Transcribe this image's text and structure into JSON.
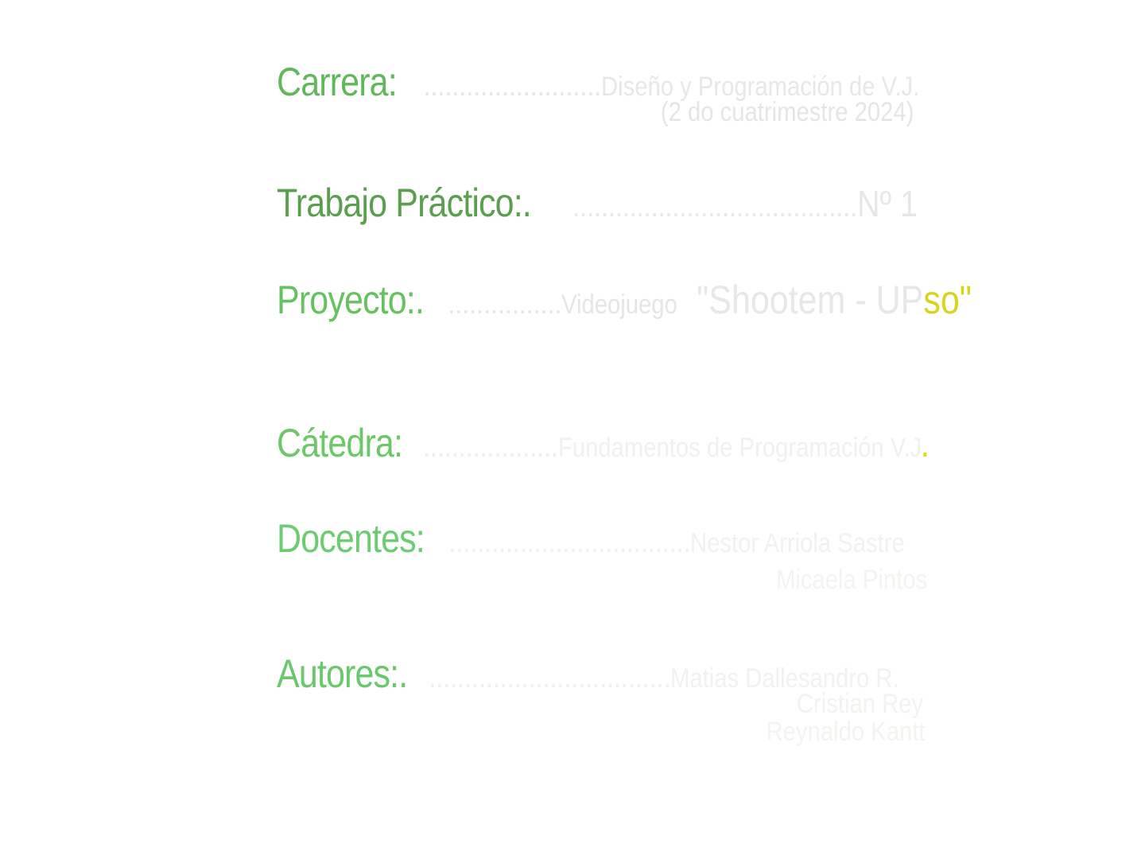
{
  "colors": {
    "label_green": "#6cc266",
    "label_green_dark": "#5aa84f",
    "dots_light": "#e4e8e3",
    "value_light": "#e9ebe9",
    "value_faint": "#f1f4ef",
    "accent_yellow": "#d6d21e"
  },
  "carrera": {
    "label": "Carrera:",
    "dots": " .........................",
    "value": "Diseño y Programación de V.J.",
    "sub": "(2 do cuatrimestre 2024)"
  },
  "trabajo_practico": {
    "label": "Trabajo Práctico:.",
    "dots": "........................................",
    "value": "Nº 1"
  },
  "proyecto": {
    "label": "Proyecto:.",
    "dots": "................",
    "value_prefix": "Videojuego ",
    "title_main": "\"Shootem - UP",
    "title_accent": "so",
    "title_end": "\""
  },
  "catedra": {
    "label": "Cátedra:",
    "dots": "...................",
    "value": "Fundamentos de Programación V.J",
    "accent_dot": "."
  },
  "docentes": {
    "label": "Docentes:",
    "dots": "..................................",
    "names": [
      "Nestor Arriola Sastre",
      "Micaela Pintos"
    ]
  },
  "autores": {
    "label": "Autores:.",
    "dots": "..................................",
    "names": [
      "Matias Dallesandro R.",
      "Cristian Rey",
      "Reynaldo Kantt"
    ]
  }
}
